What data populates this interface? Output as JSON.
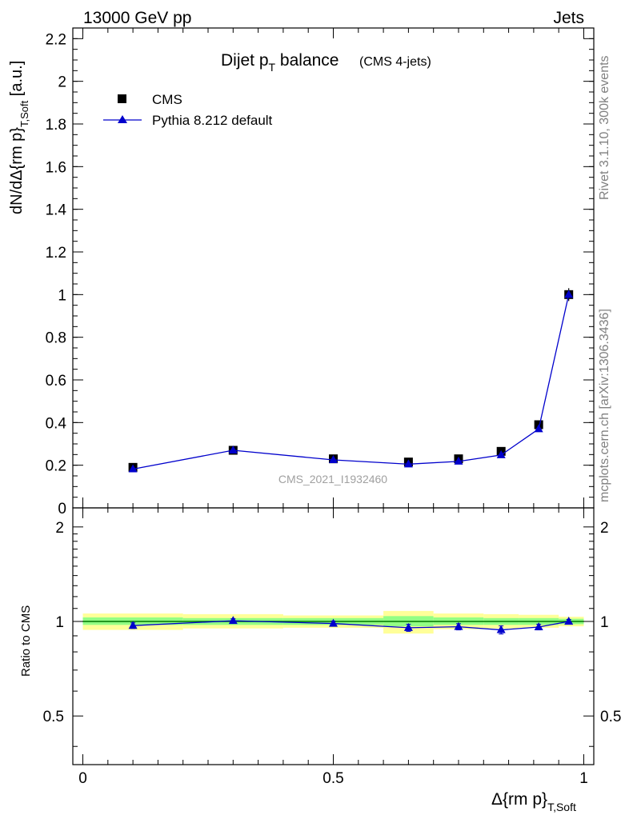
{
  "header": {
    "left": "13000 GeV pp",
    "right": "Jets"
  },
  "side_labels": {
    "rivet": "Rivet 3.1.10,  300k events",
    "mcplots": "mcplots.cern.ch [arXiv:1306.3436]"
  },
  "title": {
    "main": "Dijet p",
    "main_sub": "T",
    "main_rest": " balance",
    "qualifier": "(CMS 4-jets)"
  },
  "watermark": "CMS_2021_I1932460",
  "axes": {
    "ylabel_top": "dN/dΔ{rm p}",
    "ylabel_top_sub": "T,Soft",
    "ylabel_top_unit": " [a.u.]",
    "ylabel_bottom": "Ratio to CMS",
    "xlabel": "Δ{rm p}",
    "xlabel_sub": "T,Soft"
  },
  "legend": [
    {
      "name": "CMS",
      "marker": "square",
      "color": "#000000"
    },
    {
      "name": "Pythia 8.212 default",
      "marker": "triangle",
      "color": "#0000cc"
    }
  ],
  "chart_data": [
    {
      "type": "scatter",
      "panel": "main",
      "xlim": [
        -0.02,
        1.02
      ],
      "ylim": [
        0,
        2.25
      ],
      "yticks": [
        "0",
        "0.2",
        "0.4",
        "0.6",
        "0.8",
        "1",
        "1.2",
        "1.4",
        "1.6",
        "1.8",
        "2",
        "2.2"
      ],
      "xticks": [
        "0",
        "0.5",
        "1"
      ],
      "series": [
        {
          "name": "CMS",
          "x": [
            0.1,
            0.3,
            0.5,
            0.65,
            0.75,
            0.835,
            0.91,
            0.97
          ],
          "y": [
            0.19,
            0.27,
            0.23,
            0.215,
            0.23,
            0.265,
            0.39,
            1.0
          ],
          "yerr": [
            0.008,
            0.008,
            0.007,
            0.008,
            0.008,
            0.009,
            0.012,
            0.03
          ],
          "color": "#000000"
        },
        {
          "name": "Pythia 8.212 default",
          "x": [
            0.1,
            0.3,
            0.5,
            0.65,
            0.75,
            0.835,
            0.91,
            0.97
          ],
          "y": [
            0.182,
            0.27,
            0.225,
            0.205,
            0.218,
            0.248,
            0.37,
            1.0
          ],
          "yerr": [
            0.004,
            0.004,
            0.004,
            0.004,
            0.004,
            0.005,
            0.006,
            0.015
          ],
          "color": "#0000cc"
        }
      ]
    },
    {
      "type": "line",
      "panel": "ratio",
      "xlim": [
        -0.02,
        1.02
      ],
      "ylim": [
        0.35,
        2.3
      ],
      "yticks": [
        "0.5",
        "1",
        "2"
      ],
      "xticks": [
        "0",
        "0.5",
        "1"
      ],
      "bands": [
        {
          "x0": 0.0,
          "x1": 0.2,
          "inner": [
            0.975,
            1.03
          ],
          "outer": [
            0.94,
            1.06
          ]
        },
        {
          "x0": 0.2,
          "x1": 0.4,
          "inner": [
            0.975,
            1.025
          ],
          "outer": [
            0.95,
            1.055
          ]
        },
        {
          "x0": 0.4,
          "x1": 0.6,
          "inner": [
            0.975,
            1.025
          ],
          "outer": [
            0.955,
            1.045
          ]
        },
        {
          "x0": 0.6,
          "x1": 0.7,
          "inner": [
            0.965,
            1.04
          ],
          "outer": [
            0.915,
            1.08
          ]
        },
        {
          "x0": 0.7,
          "x1": 0.8,
          "inner": [
            0.975,
            1.03
          ],
          "outer": [
            0.945,
            1.06
          ]
        },
        {
          "x0": 0.8,
          "x1": 0.87,
          "inner": [
            0.975,
            1.025
          ],
          "outer": [
            0.95,
            1.055
          ]
        },
        {
          "x0": 0.87,
          "x1": 0.95,
          "inner": [
            0.975,
            1.025
          ],
          "outer": [
            0.955,
            1.05
          ]
        },
        {
          "x0": 0.95,
          "x1": 1.0,
          "inner": [
            0.98,
            1.02
          ],
          "outer": [
            0.965,
            1.035
          ]
        }
      ],
      "series": [
        {
          "name": "Pythia 8.212 default",
          "x": [
            0.1,
            0.3,
            0.5,
            0.65,
            0.75,
            0.835,
            0.91,
            0.97
          ],
          "y": [
            0.97,
            1.005,
            0.985,
            0.955,
            0.962,
            0.94,
            0.96,
            1.0
          ],
          "yerr": [
            0.02,
            0.015,
            0.018,
            0.025,
            0.022,
            0.028,
            0.02,
            0.015
          ],
          "color": "#0000cc"
        }
      ]
    }
  ]
}
